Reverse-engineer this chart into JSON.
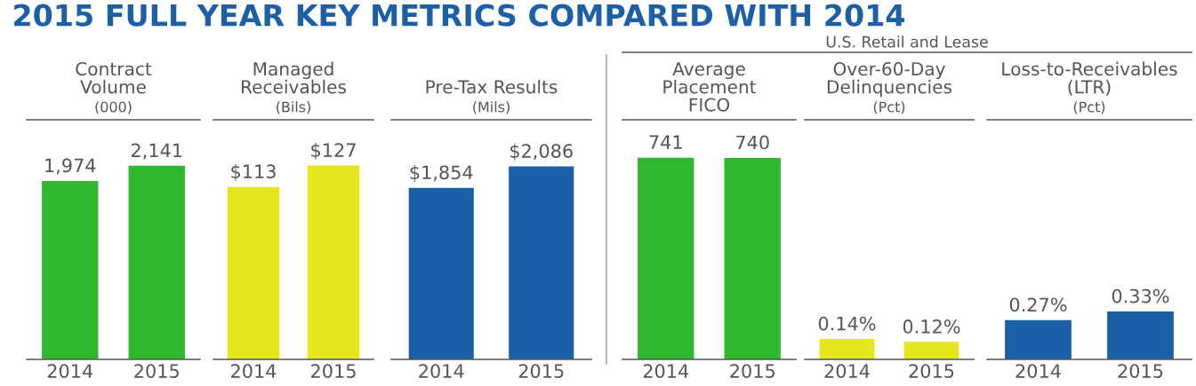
{
  "chart_data": [
    {
      "type": "bar",
      "title": "Contract\nVolume",
      "subtitle": "(000)",
      "annotations": [
        "2015 FULL YEAR KEY METRICS COMPARED WITH 2014"
      ],
      "categories": [
        "2014",
        "2015"
      ],
      "values": [
        1974,
        2141
      ],
      "value_labels": [
        "1,974",
        "2,141"
      ],
      "colors": [
        "#2db82d",
        "#2db82d"
      ],
      "ylim": [
        0,
        2650
      ],
      "tick_labels": "x"
    },
    {
      "type": "bar",
      "title": "Managed\nReceivables",
      "subtitle": "(Bils)",
      "categories": [
        "2014",
        "2015"
      ],
      "values": [
        113,
        127
      ],
      "value_labels": [
        "$113",
        "$127"
      ],
      "colors": [
        "#e6e61e",
        "#e6e61e"
      ],
      "ylim": [
        0,
        157
      ],
      "tick_labels": "x"
    },
    {
      "type": "bar",
      "title": "Pre-Tax Results",
      "subtitle": "(Mils)",
      "categories": [
        "2014",
        "2015"
      ],
      "values": [
        1854,
        2086
      ],
      "value_labels": [
        "$1,854",
        "$2,086"
      ],
      "colors": [
        "#1b5fa6",
        "#1b5fa6"
      ],
      "ylim": [
        0,
        2590
      ],
      "tick_labels": "x"
    },
    {
      "type": "bar",
      "title": "Average\nPlacement\nFICO",
      "annotations": [
        "U.S. Retail and Lease"
      ],
      "categories": [
        "2014",
        "2015"
      ],
      "values": [
        741,
        740
      ],
      "value_labels": [
        "741",
        "740"
      ],
      "colors": [
        "#2db82d",
        "#2db82d"
      ],
      "ylim": [
        0,
        880
      ],
      "tick_labels": "x"
    },
    {
      "type": "bar",
      "title": "Over-60-Day\nDelinquencies",
      "subtitle": "(Pct)",
      "categories": [
        "2014",
        "2015"
      ],
      "values": [
        0.14,
        0.12
      ],
      "value_labels": [
        "0.14%",
        "0.12%"
      ],
      "colors": [
        "#e6e61e",
        "#e6e61e"
      ],
      "ylim": [
        0,
        1.65
      ],
      "tick_labels": "x"
    },
    {
      "type": "bar",
      "title": "Loss-to-Receivables\n(LTR)",
      "subtitle": "(Pct)",
      "categories": [
        "2014",
        "2015"
      ],
      "values": [
        0.27,
        0.33
      ],
      "value_labels": [
        "0.27%",
        "0.33%"
      ],
      "colors": [
        "#1b5fa6",
        "#1b5fa6"
      ],
      "ylim": [
        0,
        1.65
      ],
      "tick_labels": "x"
    }
  ]
}
